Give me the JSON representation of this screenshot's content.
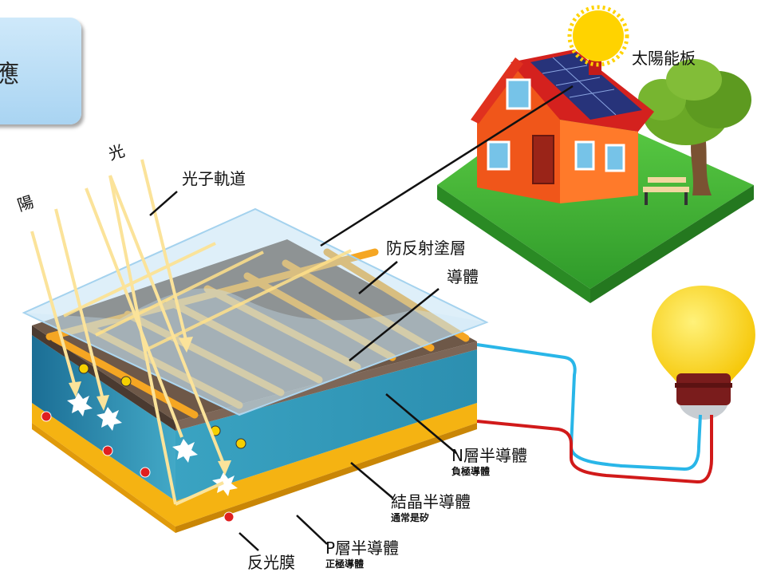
{
  "title_fragment": "應",
  "labels": {
    "sun_vertical_1": "陽",
    "sun_vertical_2": "光",
    "photon_path": "光子軌道",
    "solar_panel": "太陽能板",
    "anti_reflective": "防反射塗層",
    "conductor": "導體",
    "n_layer": "N層半導體",
    "n_layer_sub": "負極導體",
    "crystal": "結晶半導體",
    "crystal_sub": "通常是矽",
    "p_layer": "P層半導體",
    "p_layer_sub": "正極導體",
    "reflective_film": "反光膜"
  },
  "colors": {
    "title_box": "#b8ddf5",
    "panel_top": "#6e5848",
    "conductor_strip": "#f5a623",
    "crystal_blue": "#2c8fb0",
    "p_layer_gold": "#f5b312",
    "wire_blue": "#29b6e8",
    "wire_red": "#d11a1a",
    "bulb_yellow": "#ffd52e",
    "house_wall": "#ff6a1a",
    "roof_red": "#d4211e",
    "grass": "#4cbb3a",
    "sun": "#ffd300"
  }
}
